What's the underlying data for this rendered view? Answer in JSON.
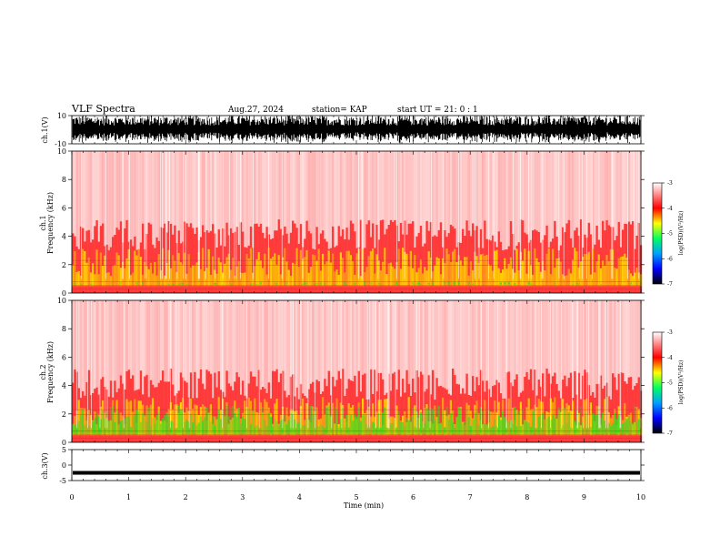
{
  "header": {
    "title": "VLF Spectra",
    "date": "Aug.27, 2024",
    "station": "station= KAP",
    "start": "start  UT  =   21: 0  : 1"
  },
  "colors": {
    "background": "#ffffff",
    "spectro_low": "#ff3a3a",
    "spectro_mid": "#ffd200",
    "spectro_high": "#33dd22",
    "trace": "#000000"
  },
  "colorbar": {
    "label": "log(PSD)(V²/Hz)",
    "stops": [
      "#000000",
      "#0000ff",
      "#00a0ff",
      "#00ff60",
      "#ffff00",
      "#ff0000",
      "#ffffff"
    ]
  },
  "chart_data": [
    {
      "type": "line",
      "name": "ch.1 waveform",
      "ylabel": "ch.1(V)",
      "ylim": [
        -10,
        10
      ],
      "yticks": [
        "10",
        "-10"
      ],
      "xlim": [
        0,
        10
      ],
      "values_note_shown": "dense saturated waveform filling most of range"
    },
    {
      "type": "heatmap",
      "ylabel": "ch.1\nFrequency (kHz)",
      "ylim": [
        0,
        10
      ],
      "yticks": [
        "0",
        "2",
        "4",
        "6",
        "8",
        "10"
      ],
      "xlim": [
        0,
        10
      ],
      "colorbar_ticks": [
        "-3",
        "-4",
        "-5",
        "-6",
        "-7"
      ],
      "band_profile_kHz": [
        0.5,
        1,
        2,
        3,
        4
      ]
    },
    {
      "type": "heatmap",
      "ylabel": "ch.2\nFrequency (kHz)",
      "ylim": [
        0,
        10
      ],
      "yticks": [
        "0",
        "2",
        "4",
        "6",
        "8",
        "10"
      ],
      "xlim": [
        0,
        10
      ],
      "colorbar_ticks": [
        "-3",
        "-4",
        "-5",
        "-6",
        "-7"
      ],
      "band_profile_kHz": [
        0.5,
        1,
        2,
        3,
        4
      ]
    },
    {
      "type": "line",
      "name": "ch.3 waveform",
      "ylabel": "ch.3(V)",
      "ylim": [
        -5,
        5
      ],
      "yticks": [
        "5",
        "0",
        "-5"
      ],
      "xlim": [
        0,
        10
      ],
      "xticks": [
        "0",
        "1",
        "2",
        "3",
        "4",
        "5",
        "6",
        "7",
        "8",
        "9",
        "10"
      ],
      "xlabel": "Time  (min)"
    }
  ],
  "cb1_label": "log(PSD)(V²/Hz)",
  "cb2_label": "log(PSD)(V²/Hz)"
}
